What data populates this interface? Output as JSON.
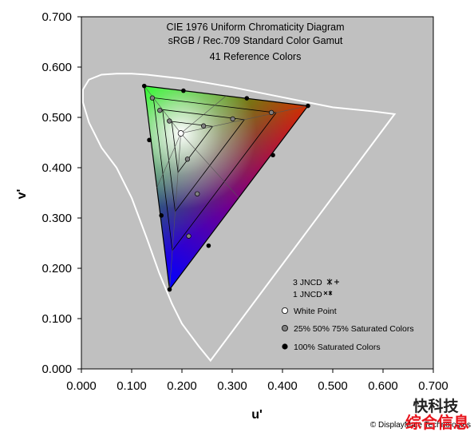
{
  "chart_data": {
    "type": "scatter",
    "title": "CIE 1976 Uniform Chromaticity Diagram",
    "subtitle": "sRGB / Rec.709 Standard Color Gamut",
    "subtitle2": "41 Reference Colors",
    "xlabel": "u'",
    "ylabel": "v'",
    "xlim": [
      0,
      0.7
    ],
    "ylim": [
      0,
      0.7
    ],
    "x_ticks": [
      "0.000",
      "0.100",
      "0.200",
      "0.300",
      "0.400",
      "0.500",
      "0.600",
      "0.700"
    ],
    "y_ticks": [
      "0.000",
      "0.100",
      "0.200",
      "0.300",
      "0.400",
      "0.500",
      "0.600",
      "0.700"
    ],
    "grid": false,
    "plot_background": "#c0c0c0",
    "spectral_locus": [
      [
        0.2568,
        0.0165
      ],
      [
        0.2335,
        0.045
      ],
      [
        0.2,
        0.09
      ],
      [
        0.18,
        0.13
      ],
      [
        0.155,
        0.19
      ],
      [
        0.13,
        0.26
      ],
      [
        0.1,
        0.34
      ],
      [
        0.07,
        0.4
      ],
      [
        0.04,
        0.44
      ],
      [
        0.015,
        0.49
      ],
      [
        0.003,
        0.53
      ],
      [
        0.003,
        0.555
      ],
      [
        0.015,
        0.575
      ],
      [
        0.04,
        0.585
      ],
      [
        0.07,
        0.587
      ],
      [
        0.1,
        0.587
      ],
      [
        0.13,
        0.585
      ],
      [
        0.2,
        0.577
      ],
      [
        0.3,
        0.56
      ],
      [
        0.4,
        0.54
      ],
      [
        0.5,
        0.52
      ],
      [
        0.58,
        0.512
      ],
      [
        0.623,
        0.5065
      ]
    ],
    "gamut_primaries": {
      "red": [
        0.4507,
        0.5229
      ],
      "green": [
        0.125,
        0.5625
      ],
      "blue": [
        0.1754,
        0.1579
      ]
    },
    "white_point": [
      0.1978,
      0.4683
    ],
    "saturation_levels": [
      0.25,
      0.5,
      0.75,
      1.0
    ],
    "series": [
      {
        "name": "White Point",
        "color": "#ffffff",
        "points": [
          [
            0.1978,
            0.4683
          ]
        ]
      },
      {
        "name": "25% 50% 75% Saturated Colors",
        "color": "#808080",
        "points": [
          [
            0.1411,
            0.5386
          ],
          [
            0.156,
            0.514
          ],
          [
            0.175,
            0.4928
          ],
          [
            0.378,
            0.5096
          ],
          [
            0.301,
            0.4969
          ],
          [
            0.243,
            0.483
          ],
          [
            0.2135,
            0.264
          ],
          [
            0.2305,
            0.348
          ],
          [
            0.211,
            0.417
          ]
        ]
      },
      {
        "name": "100% Saturated Colors",
        "color": "#000000",
        "points": [
          [
            0.4507,
            0.5229
          ],
          [
            0.125,
            0.5625
          ],
          [
            0.1754,
            0.1579
          ],
          [
            0.203,
            0.553
          ],
          [
            0.329,
            0.538
          ],
          [
            0.135,
            0.455
          ],
          [
            0.159,
            0.305
          ],
          [
            0.381,
            0.425
          ],
          [
            0.253,
            0.245
          ]
        ]
      }
    ],
    "legend": {
      "jncd3": "3 JNCD",
      "jncd1": "1 JNCD",
      "items": [
        "White Point",
        "25% 50% 75% Saturated Colors",
        "100% Saturated Colors"
      ]
    },
    "legend_position": "bottom-right"
  },
  "copyright": "© DisplayMate Technologies",
  "watermark": {
    "top": "快科技",
    "bottom": "综合信息"
  }
}
